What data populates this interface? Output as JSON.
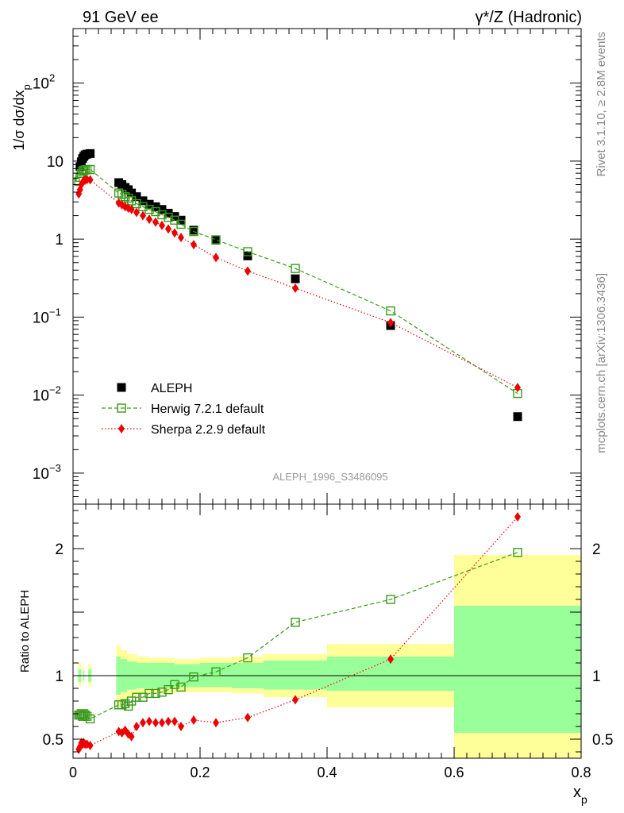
{
  "header": {
    "left_title": "91 GeV ee",
    "right_title": "γ*/Z (Hadronic)"
  },
  "side_labels": {
    "rivet": "Rivet 3.1.10, ≥ 2.8M events",
    "mcplots": "mcplots.cern.ch [arXiv:1306.3436]"
  },
  "analysis_id": "ALEPH_1996_S3486095",
  "colors": {
    "aleph": "#000000",
    "herwig": "#3a9a1a",
    "sherpa": "#ee0000",
    "band_inner": "#99ff99",
    "band_outer": "#ffff99"
  },
  "chart_data": [
    {
      "type": "scatter",
      "name": "main",
      "ylabel": "1/σ dσ/dx_p",
      "yscale": "log",
      "xlim": [
        0,
        0.8
      ],
      "ylim": [
        0.0004,
        500
      ],
      "y_ticks": [
        {
          "value": 0.001,
          "label": "10",
          "exp": "−3"
        },
        {
          "value": 0.01,
          "label": "10",
          "exp": "−2"
        },
        {
          "value": 0.1,
          "label": "10",
          "exp": "−1"
        },
        {
          "value": 1,
          "label": "1",
          "exp": ""
        },
        {
          "value": 10,
          "label": "10",
          "exp": ""
        },
        {
          "value": 100,
          "label": "10",
          "exp": "2"
        }
      ],
      "legend": [
        {
          "key": "aleph",
          "label": "ALEPH"
        },
        {
          "key": "herwig",
          "label": "Herwig 7.2.1 default"
        },
        {
          "key": "sherpa",
          "label": "Sherpa 2.2.9 default"
        }
      ],
      "series": [
        {
          "name": "ALEPH",
          "key": "aleph",
          "marker": "filled-square",
          "x": [
            0.011,
            0.013,
            0.015,
            0.017,
            0.019,
            0.022,
            0.027,
            0.072,
            0.077,
            0.082,
            0.087,
            0.092,
            0.1,
            0.11,
            0.12,
            0.13,
            0.14,
            0.15,
            0.16,
            0.17,
            0.19,
            0.225,
            0.275,
            0.35,
            0.5,
            0.7
          ],
          "y": [
            8.5,
            9.8,
            10.8,
            11.5,
            12.0,
            12.3,
            12.5,
            5.3,
            5.0,
            4.6,
            4.3,
            3.9,
            3.5,
            3.1,
            2.8,
            2.6,
            2.4,
            2.15,
            1.95,
            1.75,
            1.3,
            0.97,
            0.61,
            0.31,
            0.078,
            0.0053
          ]
        },
        {
          "name": "Herwig 7.2.1 default",
          "key": "herwig",
          "marker": "open-square",
          "line": "dashed",
          "x": [
            0.009,
            0.011,
            0.013,
            0.015,
            0.017,
            0.019,
            0.022,
            0.027,
            0.072,
            0.077,
            0.082,
            0.087,
            0.092,
            0.1,
            0.11,
            0.12,
            0.13,
            0.14,
            0.15,
            0.16,
            0.17,
            0.19,
            0.225,
            0.275,
            0.35,
            0.5,
            0.7
          ],
          "y": [
            5.5,
            6.2,
            7.0,
            7.4,
            7.6,
            7.7,
            7.8,
            7.8,
            3.9,
            3.75,
            3.5,
            3.35,
            3.1,
            2.85,
            2.6,
            2.4,
            2.25,
            2.05,
            1.9,
            1.75,
            1.55,
            1.25,
            0.98,
            0.69,
            0.42,
            0.12,
            0.0105
          ]
        },
        {
          "name": "Sherpa 2.2.9 default",
          "key": "sherpa",
          "marker": "filled-diamond",
          "line": "dotted",
          "x": [
            0.009,
            0.011,
            0.013,
            0.015,
            0.017,
            0.019,
            0.022,
            0.027,
            0.072,
            0.077,
            0.082,
            0.087,
            0.092,
            0.1,
            0.11,
            0.12,
            0.13,
            0.14,
            0.15,
            0.16,
            0.17,
            0.19,
            0.225,
            0.275,
            0.35,
            0.5,
            0.7
          ],
          "y": [
            3.8,
            4.3,
            5.0,
            5.3,
            5.6,
            5.7,
            5.8,
            5.75,
            2.9,
            2.75,
            2.6,
            2.5,
            2.4,
            2.2,
            2.0,
            1.8,
            1.65,
            1.5,
            1.35,
            1.2,
            1.05,
            0.85,
            0.58,
            0.39,
            0.235,
            0.085,
            0.0125
          ]
        }
      ]
    },
    {
      "type": "scatter",
      "name": "ratio",
      "xlabel": "x_p",
      "ylabel": "Ratio to ALEPH",
      "xlim": [
        0,
        0.8
      ],
      "ylim": [
        0.35,
        2.35
      ],
      "x_ticks": [
        0,
        0.2,
        0.4,
        0.6,
        0.8
      ],
      "x_tick_labels": [
        "0",
        "0.2",
        "0.4",
        "0.6",
        "0.8"
      ],
      "y_ticks": [
        0.5,
        1,
        2
      ],
      "y_tick_labels": [
        "0.5",
        "1",
        "2"
      ],
      "uncertainty_band": [
        {
          "x0": 0.008,
          "x1": 0.013,
          "outer": [
            0.92,
            1.1
          ],
          "inner": [
            0.95,
            1.05
          ]
        },
        {
          "x0": 0.016,
          "x1": 0.018,
          "outer": [
            0.94,
            1.07
          ],
          "inner": [
            0.96,
            1.04
          ]
        },
        {
          "x0": 0.024,
          "x1": 0.029,
          "outer": [
            0.92,
            1.09
          ],
          "inner": [
            0.95,
            1.05
          ]
        },
        {
          "x0": 0.068,
          "x1": 0.075,
          "outer": [
            0.76,
            1.24
          ],
          "inner": [
            0.85,
            1.15
          ]
        },
        {
          "x0": 0.075,
          "x1": 0.085,
          "outer": [
            0.8,
            1.2
          ],
          "inner": [
            0.87,
            1.13
          ]
        },
        {
          "x0": 0.085,
          "x1": 0.1,
          "outer": [
            0.83,
            1.17
          ],
          "inner": [
            0.89,
            1.11
          ]
        },
        {
          "x0": 0.1,
          "x1": 0.12,
          "outer": [
            0.85,
            1.15
          ],
          "inner": [
            0.9,
            1.1
          ]
        },
        {
          "x0": 0.12,
          "x1": 0.16,
          "outer": [
            0.86,
            1.14
          ],
          "inner": [
            0.9,
            1.1
          ]
        },
        {
          "x0": 0.16,
          "x1": 0.18,
          "outer": [
            0.87,
            1.13
          ],
          "inner": [
            0.91,
            1.09
          ]
        },
        {
          "x0": 0.18,
          "x1": 0.2,
          "outer": [
            0.87,
            1.13
          ],
          "inner": [
            0.91,
            1.09
          ]
        },
        {
          "x0": 0.2,
          "x1": 0.25,
          "outer": [
            0.87,
            1.14
          ],
          "inner": [
            0.91,
            1.1
          ]
        },
        {
          "x0": 0.25,
          "x1": 0.3,
          "outer": [
            0.86,
            1.15
          ],
          "inner": [
            0.9,
            1.1
          ]
        },
        {
          "x0": 0.3,
          "x1": 0.4,
          "outer": [
            0.83,
            1.17
          ],
          "inner": [
            0.89,
            1.12
          ]
        },
        {
          "x0": 0.4,
          "x1": 0.6,
          "outer": [
            0.75,
            1.25
          ],
          "inner": [
            0.88,
            1.15
          ]
        },
        {
          "x0": 0.6,
          "x1": 0.8,
          "outer": [
            0.35,
            1.95
          ],
          "inner": [
            0.55,
            1.55
          ]
        }
      ],
      "series": [
        {
          "name": "Herwig 7.2.1 default",
          "key": "herwig",
          "marker": "open-square",
          "line": "dashed",
          "x": [
            0.009,
            0.011,
            0.013,
            0.015,
            0.017,
            0.019,
            0.022,
            0.027,
            0.072,
            0.077,
            0.082,
            0.087,
            0.092,
            0.1,
            0.11,
            0.12,
            0.13,
            0.14,
            0.15,
            0.16,
            0.17,
            0.19,
            0.225,
            0.275,
            0.35,
            0.5,
            0.7
          ],
          "y": [
            0.69,
            0.69,
            0.7,
            0.68,
            0.7,
            0.69,
            0.68,
            0.66,
            0.77,
            0.77,
            0.78,
            0.76,
            0.8,
            0.83,
            0.83,
            0.86,
            0.86,
            0.87,
            0.89,
            0.93,
            0.91,
            0.99,
            1.03,
            1.14,
            1.42,
            1.6,
            1.97
          ]
        },
        {
          "name": "Sherpa 2.2.9 default",
          "key": "sherpa",
          "marker": "filled-diamond",
          "line": "dotted",
          "x": [
            0.009,
            0.011,
            0.013,
            0.015,
            0.017,
            0.019,
            0.022,
            0.027,
            0.072,
            0.077,
            0.082,
            0.087,
            0.092,
            0.1,
            0.11,
            0.12,
            0.13,
            0.14,
            0.15,
            0.16,
            0.17,
            0.19,
            0.225,
            0.275,
            0.35,
            0.5,
            0.7
          ],
          "y": [
            0.42,
            0.44,
            0.47,
            0.46,
            0.47,
            0.46,
            0.46,
            0.45,
            0.56,
            0.55,
            0.57,
            0.54,
            0.52,
            0.6,
            0.63,
            0.64,
            0.63,
            0.63,
            0.64,
            0.64,
            0.6,
            0.65,
            0.63,
            0.67,
            0.81,
            1.13,
            2.25
          ]
        }
      ]
    }
  ]
}
